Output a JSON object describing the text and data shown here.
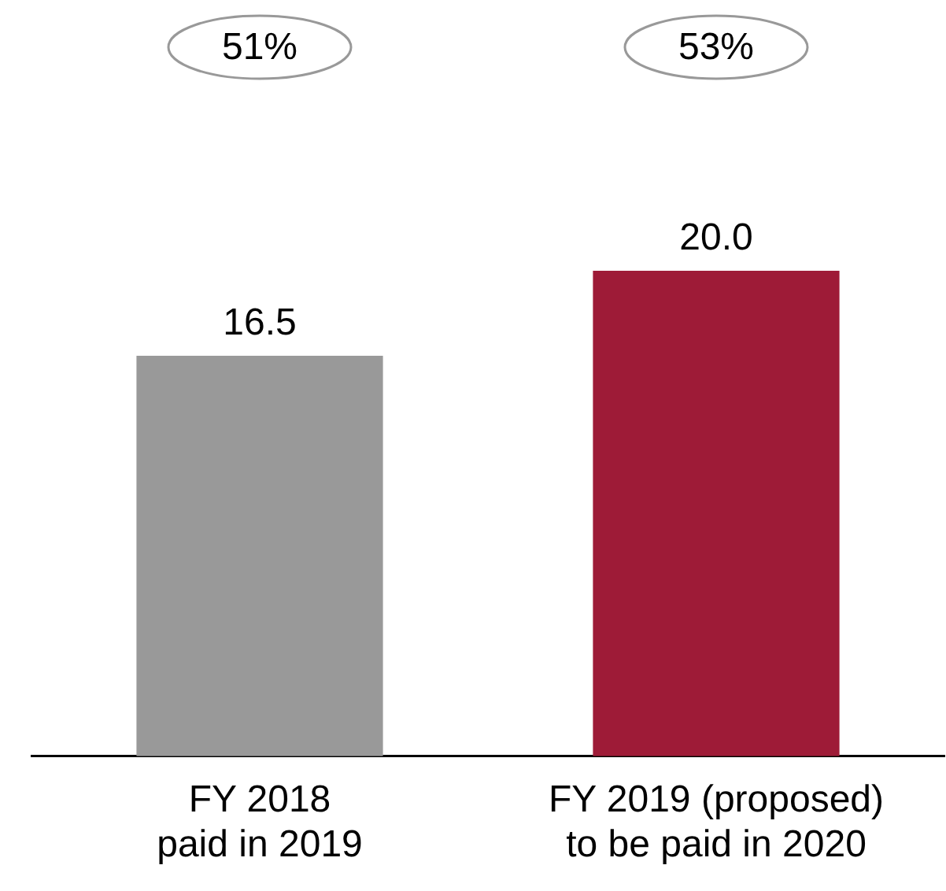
{
  "chart_data": {
    "type": "bar",
    "categories": [
      "FY 2018\npaid in 2019",
      "FY 2019 (proposed)\nto be paid in 2020"
    ],
    "values": [
      16.5,
      20.0
    ],
    "colors": [
      "#999999",
      "#9e1b37"
    ],
    "value_labels": [
      "16.5",
      "20.0"
    ],
    "tick_labels": "x",
    "grid": false,
    "legend": false,
    "annotations": [
      "51%",
      "53%"
    ]
  }
}
